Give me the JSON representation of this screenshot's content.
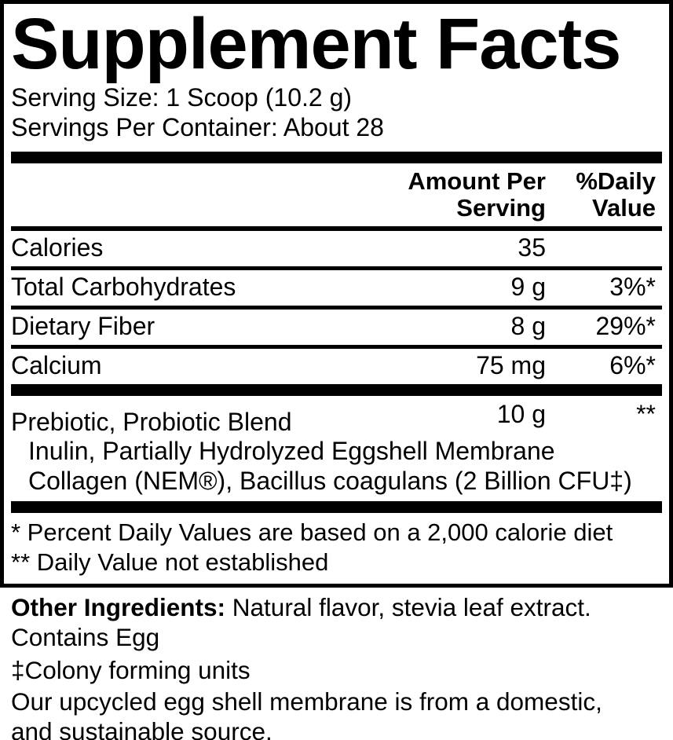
{
  "colors": {
    "text": "#000000",
    "background": "#ffffff"
  },
  "title": "Supplement Facts",
  "serving_info": {
    "serving_size": "Serving Size: 1 Scoop (10.2 g)",
    "servings_per_container": "Servings Per Container: About 28"
  },
  "table": {
    "headers": {
      "amount": "Amount Per Serving",
      "daily_value": "%Daily Value"
    },
    "rows": [
      {
        "name": "Calories",
        "amount": "35",
        "daily_value": ""
      },
      {
        "name": "Total Carbohydrates",
        "amount": "9 g",
        "daily_value": "3%*"
      },
      {
        "name": "Dietary Fiber",
        "amount": "8 g",
        "daily_value": "29%*"
      },
      {
        "name": "Calcium",
        "amount": "75 mg",
        "daily_value": "6%*"
      }
    ],
    "blend": {
      "name": "Prebiotic, Probiotic Blend",
      "amount": "10 g",
      "daily_value": "**",
      "ingredients_lines": [
        "Inulin, Partially Hydrolyzed Eggshell Membrane",
        "Collagen (NEM®), Bacillus coagulans (2 Billion CFU‡)"
      ]
    },
    "footnotes": [
      "* Percent Daily Values are based on a 2,000 calorie diet",
      "** Daily Value not established"
    ]
  },
  "additional_info": {
    "other_ingredients_label": "Other Ingredients:",
    "other_ingredients_text": " Natural flavor, stevia leaf extract.",
    "contains": "Contains Egg",
    "colony_note": "‡Colony forming units",
    "source_lines": [
      "Our upcycled egg shell membrane is from a domestic,",
      "and sustainable source."
    ]
  }
}
